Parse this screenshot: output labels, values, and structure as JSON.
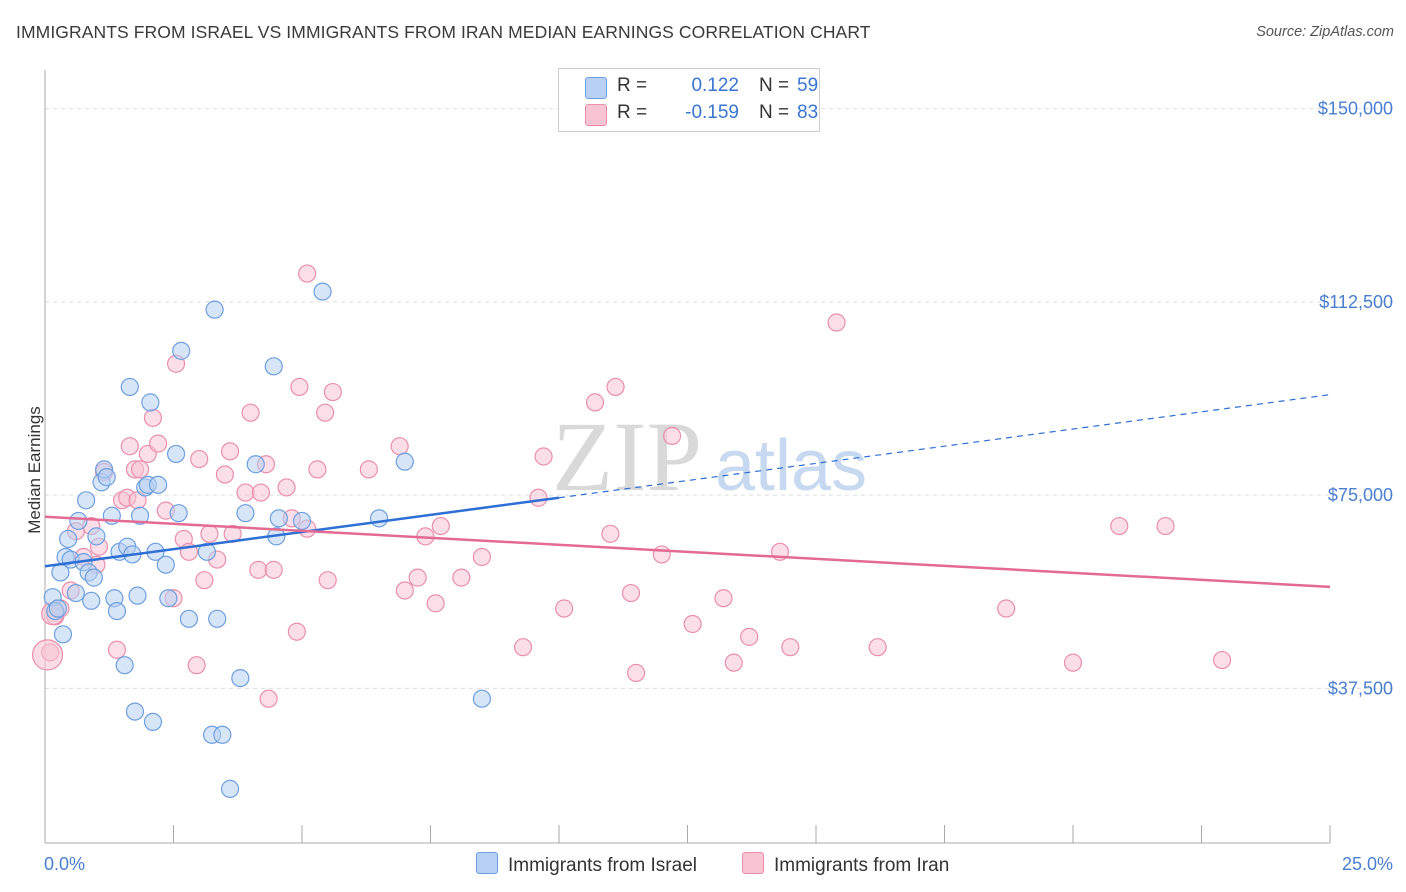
{
  "header": {
    "title": "IMMIGRANTS FROM ISRAEL VS IMMIGRANTS FROM IRAN MEDIAN EARNINGS CORRELATION CHART",
    "source": "Source: ZipAtlas.com"
  },
  "legend": {
    "rows": [
      {
        "r_label": "R =",
        "r_value": "0.122",
        "n_label": "N =",
        "n_value": "59"
      },
      {
        "r_label": "R =",
        "r_value": "-0.159",
        "n_label": "N =",
        "n_value": "83"
      }
    ]
  },
  "colors": {
    "israel_fill": "#b7d0f3",
    "israel_stroke": "#6e9fe0",
    "israel_line": "#2d6fd4",
    "iran_fill": "#f8c3d3",
    "iran_stroke": "#ea8fab",
    "iran_line": "#e36a93",
    "axis_text": "#4a7fd0",
    "grid": "#dddddd"
  },
  "watermark": {
    "zip": "ZIP",
    "atlas": "atlas"
  },
  "chart_data": {
    "type": "scatter",
    "xlim": [
      0,
      25
    ],
    "ylim": [
      7500,
      157500
    ],
    "x_tick_labels": [
      "0.0%",
      "25.0%"
    ],
    "y_ticks": [
      37500,
      75000,
      112500,
      150000
    ],
    "y_tick_labels": [
      "$37,500",
      "$75,000",
      "$112,500",
      "$150,000"
    ],
    "ylabel": "Median Earnings",
    "grid": "horizontal dashed",
    "legend_placement": "top-center and bottom",
    "series": [
      {
        "name": "Immigrants from Israel",
        "trend": {
          "x0": 0,
          "y0": 61200,
          "x1": 10,
          "y1": 74500,
          "dashed_to_x": 25,
          "dashed_to_y": 94500
        },
        "points": [
          [
            0.15,
            55200
          ],
          [
            0.2,
            52500
          ],
          [
            0.25,
            53000
          ],
          [
            0.35,
            48000
          ],
          [
            0.3,
            60000
          ],
          [
            0.4,
            63000
          ],
          [
            0.5,
            62500
          ],
          [
            0.45,
            66500
          ],
          [
            0.6,
            56000
          ],
          [
            0.65,
            70000
          ],
          [
            0.75,
            62000
          ],
          [
            0.8,
            74000
          ],
          [
            0.85,
            60000
          ],
          [
            0.9,
            54500
          ],
          [
            0.95,
            59000
          ],
          [
            1.0,
            67000
          ],
          [
            1.1,
            77500
          ],
          [
            1.15,
            80000
          ],
          [
            1.2,
            78500
          ],
          [
            1.3,
            71000
          ],
          [
            1.35,
            55000
          ],
          [
            1.4,
            52500
          ],
          [
            1.45,
            64000
          ],
          [
            1.55,
            42000
          ],
          [
            1.6,
            65000
          ],
          [
            1.65,
            96000
          ],
          [
            1.7,
            63500
          ],
          [
            1.75,
            33000
          ],
          [
            1.8,
            55500
          ],
          [
            1.85,
            71000
          ],
          [
            1.95,
            76500
          ],
          [
            2.0,
            77000
          ],
          [
            2.05,
            93000
          ],
          [
            2.1,
            31000
          ],
          [
            2.15,
            64000
          ],
          [
            2.2,
            77000
          ],
          [
            2.35,
            61500
          ],
          [
            2.4,
            55000
          ],
          [
            2.55,
            83000
          ],
          [
            2.6,
            71500
          ],
          [
            2.65,
            103000
          ],
          [
            2.8,
            51000
          ],
          [
            3.15,
            64000
          ],
          [
            3.25,
            28500
          ],
          [
            3.3,
            111000
          ],
          [
            3.35,
            51000
          ],
          [
            3.45,
            28500
          ],
          [
            3.6,
            18000
          ],
          [
            3.8,
            39500
          ],
          [
            3.9,
            71500
          ],
          [
            4.1,
            81000
          ],
          [
            4.45,
            100000
          ],
          [
            4.5,
            67000
          ],
          [
            4.55,
            70500
          ],
          [
            5.4,
            114500
          ],
          [
            5.0,
            70000
          ],
          [
            6.5,
            70500
          ],
          [
            7.0,
            81500
          ],
          [
            8.5,
            35500
          ]
        ]
      },
      {
        "name": "Immigrants from Iran",
        "trend": {
          "x0": 0,
          "y0": 70800,
          "x1": 25,
          "y1": 57200
        },
        "points": [
          [
            0.1,
            44500
          ],
          [
            0.2,
            51500
          ],
          [
            0.3,
            53000
          ],
          [
            0.5,
            56500
          ],
          [
            0.6,
            68000
          ],
          [
            0.75,
            63000
          ],
          [
            0.9,
            69000
          ],
          [
            1.0,
            61500
          ],
          [
            1.05,
            65000
          ],
          [
            1.15,
            79500
          ],
          [
            1.4,
            45000
          ],
          [
            1.5,
            74000
          ],
          [
            1.6,
            74500
          ],
          [
            1.65,
            84500
          ],
          [
            1.75,
            80000
          ],
          [
            1.8,
            74000
          ],
          [
            1.85,
            80000
          ],
          [
            2.0,
            83000
          ],
          [
            2.1,
            90000
          ],
          [
            2.2,
            85000
          ],
          [
            2.35,
            72000
          ],
          [
            2.5,
            55000
          ],
          [
            2.55,
            100500
          ],
          [
            2.7,
            66500
          ],
          [
            2.8,
            64000
          ],
          [
            2.95,
            42000
          ],
          [
            3.0,
            82000
          ],
          [
            3.1,
            58500
          ],
          [
            3.2,
            67500
          ],
          [
            3.35,
            62500
          ],
          [
            3.5,
            79000
          ],
          [
            3.6,
            83500
          ],
          [
            3.65,
            67500
          ],
          [
            3.9,
            75500
          ],
          [
            4.0,
            91000
          ],
          [
            4.15,
            60500
          ],
          [
            4.2,
            75500
          ],
          [
            4.3,
            81000
          ],
          [
            4.35,
            35500
          ],
          [
            4.45,
            60500
          ],
          [
            4.7,
            76500
          ],
          [
            4.8,
            70500
          ],
          [
            4.9,
            48500
          ],
          [
            4.95,
            96000
          ],
          [
            5.1,
            68500
          ],
          [
            5.1,
            118000
          ],
          [
            5.3,
            80000
          ],
          [
            5.45,
            91000
          ],
          [
            5.5,
            58500
          ],
          [
            5.6,
            95000
          ],
          [
            6.3,
            80000
          ],
          [
            6.9,
            84500
          ],
          [
            7.0,
            56500
          ],
          [
            7.25,
            59000
          ],
          [
            7.4,
            67000
          ],
          [
            7.6,
            54000
          ],
          [
            7.7,
            69000
          ],
          [
            8.1,
            59000
          ],
          [
            8.5,
            63000
          ],
          [
            9.3,
            45500
          ],
          [
            9.6,
            74500
          ],
          [
            9.7,
            82500
          ],
          [
            10.1,
            53000
          ],
          [
            10.7,
            93000
          ],
          [
            11.0,
            67500
          ],
          [
            11.1,
            96000
          ],
          [
            11.4,
            56000
          ],
          [
            11.5,
            40500
          ],
          [
            12.0,
            63500
          ],
          [
            12.2,
            86500
          ],
          [
            12.6,
            50000
          ],
          [
            13.2,
            55000
          ],
          [
            13.4,
            42500
          ],
          [
            13.7,
            47500
          ],
          [
            14.3,
            64000
          ],
          [
            14.5,
            45500
          ],
          [
            15.4,
            108500
          ],
          [
            16.2,
            45500
          ],
          [
            18.7,
            53000
          ],
          [
            20.0,
            42500
          ],
          [
            20.9,
            69000
          ],
          [
            21.8,
            69000
          ],
          [
            22.9,
            43000
          ]
        ]
      }
    ]
  }
}
